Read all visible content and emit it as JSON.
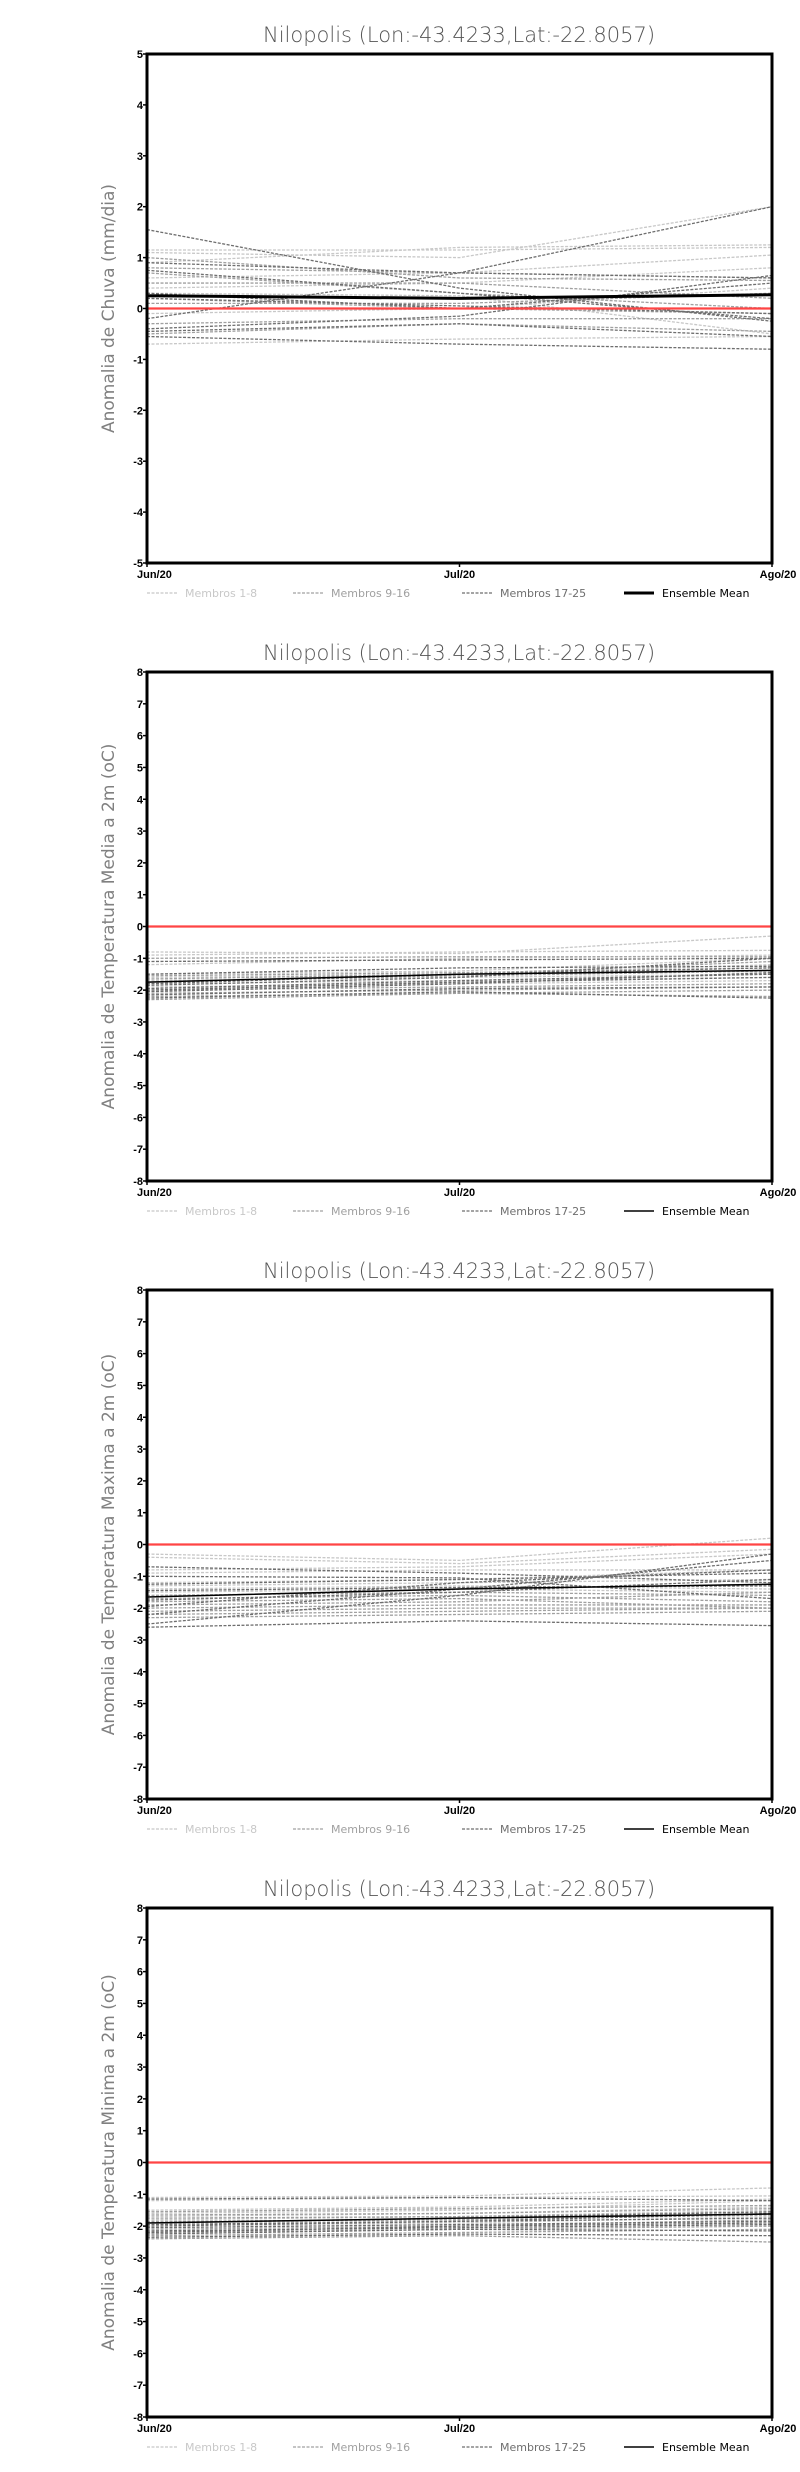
{
  "colors": {
    "zero_line": "#ff4444",
    "members_1_8": "#c8c8c8",
    "members_9_16": "#a0a0a0",
    "members_17_25": "#6e6e6e",
    "mean": "#000000"
  },
  "chart_data": [
    {
      "type": "line",
      "title": "Nilopolis (Lon:-43.4233,Lat:-22.8057)",
      "ylabel": "Anomalia de Chuva (mm/dia)",
      "xlabel": "",
      "categories": [
        "Jun/20",
        "Jul/20",
        "Ago/20"
      ],
      "ylim": [
        -5,
        5
      ],
      "yticks": [
        5,
        4,
        3,
        2,
        1,
        0,
        -1,
        -2,
        -3,
        -4,
        -5
      ],
      "legend": [
        "Membros 1-8",
        "Membros 9-16",
        "Membros 17-25",
        "Ensemble Mean"
      ],
      "legend_position": "bottom",
      "mean_thick": true,
      "members": [
        [
          1.15,
          1.15,
          1.2
        ],
        [
          1.1,
          1.0,
          2.0
        ],
        [
          0.9,
          1.2,
          1.25
        ],
        [
          0.6,
          0.7,
          1.05
        ],
        [
          0.4,
          0.5,
          0.8
        ],
        [
          -0.7,
          -0.6,
          -0.55
        ],
        [
          -0.1,
          0.0,
          0.4
        ],
        [
          0.3,
          0.25,
          -0.5
        ],
        [
          0.8,
          0.7,
          0.6
        ],
        [
          0.5,
          0.5,
          0.2
        ],
        [
          -0.5,
          -0.3,
          -0.45
        ],
        [
          0.2,
          0.0,
          -0.1
        ],
        [
          1.0,
          0.6,
          0.55
        ],
        [
          0.1,
          0.1,
          0.3
        ],
        [
          -0.3,
          -0.2,
          -0.2
        ],
        [
          0.7,
          0.3,
          0.0
        ],
        [
          1.55,
          0.4,
          -0.25
        ],
        [
          -0.2,
          0.7,
          2.0
        ],
        [
          0.9,
          0.7,
          0.6
        ],
        [
          -0.45,
          -0.3,
          -0.55
        ],
        [
          -0.55,
          -0.7,
          -0.8
        ],
        [
          0.3,
          0.0,
          0.5
        ],
        [
          0.75,
          0.3,
          -0.2
        ],
        [
          -0.4,
          -0.15,
          0.65
        ],
        [
          0.2,
          0.05,
          -0.1
        ]
      ],
      "mean": [
        0.25,
        0.2,
        0.27
      ]
    },
    {
      "type": "line",
      "title": "Nilopolis (Lon:-43.4233,Lat:-22.8057)",
      "ylabel": "Anomalia de Temperatura Media a 2m (oC)",
      "xlabel": "",
      "categories": [
        "Jun/20",
        "Jul/20",
        "Ago/20"
      ],
      "ylim": [
        -8,
        8
      ],
      "yticks": [
        8,
        7,
        6,
        5,
        4,
        3,
        2,
        1,
        0,
        -1,
        -2,
        -3,
        -4,
        -5,
        -6,
        -7,
        -8
      ],
      "legend": [
        "Membros 1-8",
        "Membros 9-16",
        "Membros 17-25",
        "Ensemble Mean"
      ],
      "legend_position": "bottom",
      "mean_thick": false,
      "members": [
        [
          -0.8,
          -0.85,
          -0.3
        ],
        [
          -0.9,
          -0.8,
          -0.75
        ],
        [
          -1.2,
          -1.0,
          -0.9
        ],
        [
          -1.5,
          -1.4,
          -1.0
        ],
        [
          -1.6,
          -1.5,
          -1.2
        ],
        [
          -1.7,
          -1.6,
          -1.5
        ],
        [
          -1.8,
          -1.7,
          -1.6
        ],
        [
          -1.9,
          -1.8,
          -1.7
        ],
        [
          -2.0,
          -1.9,
          -1.8
        ],
        [
          -2.1,
          -2.0,
          -1.9
        ],
        [
          -2.2,
          -2.1,
          -2.2
        ],
        [
          -2.3,
          -2.1,
          -2.0
        ],
        [
          -1.0,
          -0.95,
          -0.95
        ],
        [
          -1.55,
          -1.45,
          -1.3
        ],
        [
          -1.65,
          -1.5,
          -1.1
        ],
        [
          -1.75,
          -1.55,
          -1.4
        ],
        [
          -1.85,
          -1.6,
          -1.0
        ],
        [
          -1.95,
          -1.7,
          -1.5
        ],
        [
          -2.05,
          -1.8,
          -1.45
        ],
        [
          -2.15,
          -1.95,
          -1.9
        ],
        [
          -2.25,
          -2.05,
          -2.25
        ],
        [
          -1.1,
          -1.05,
          -1.0
        ],
        [
          -1.5,
          -1.3,
          -1.25
        ],
        [
          -2.0,
          -1.75,
          -1.6
        ],
        [
          -1.8,
          -1.5,
          -1.3
        ]
      ],
      "mean": [
        -1.75,
        -1.5,
        -1.38
      ]
    },
    {
      "type": "line",
      "title": "Nilopolis (Lon:-43.4233,Lat:-22.8057)",
      "ylabel": "Anomalia de Temperatura Maxima a 2m (oC)",
      "xlabel": "",
      "categories": [
        "Jun/20",
        "Jul/20",
        "Ago/20"
      ],
      "ylim": [
        -8,
        8
      ],
      "yticks": [
        8,
        7,
        6,
        5,
        4,
        3,
        2,
        1,
        0,
        -1,
        -2,
        -3,
        -4,
        -5,
        -6,
        -7,
        -8
      ],
      "legend": [
        "Membros 1-8",
        "Membros 9-16",
        "Membros 17-25",
        "Ensemble Mean"
      ],
      "legend_position": "bottom",
      "mean_thick": false,
      "members": [
        [
          -0.3,
          -0.5,
          0.2
        ],
        [
          -0.4,
          -0.6,
          -0.15
        ],
        [
          -0.8,
          -0.7,
          -0.3
        ],
        [
          -0.9,
          -0.8,
          -0.8
        ],
        [
          -1.2,
          -1.1,
          -0.8
        ],
        [
          -1.3,
          -1.2,
          -1.1
        ],
        [
          -1.4,
          -1.3,
          -1.4
        ],
        [
          -1.5,
          -1.4,
          -1.5
        ],
        [
          -1.6,
          -1.5,
          -1.6
        ],
        [
          -1.7,
          -1.6,
          -1.8
        ],
        [
          -1.8,
          -1.7,
          -2.0
        ],
        [
          -1.9,
          -1.8,
          -1.5
        ],
        [
          -2.0,
          -1.9,
          -1.9
        ],
        [
          -2.1,
          -2.0,
          -2.0
        ],
        [
          -2.2,
          -2.1,
          -2.0
        ],
        [
          -2.3,
          -2.2,
          -2.1
        ],
        [
          -2.6,
          -2.4,
          -2.55
        ],
        [
          -2.5,
          -1.6,
          -0.3
        ],
        [
          -2.2,
          -1.4,
          -0.5
        ],
        [
          -1.95,
          -1.2,
          -0.8
        ],
        [
          -1.75,
          -1.5,
          -1.1
        ],
        [
          -1.45,
          -1.35,
          -1.3
        ],
        [
          -1.25,
          -1.1,
          -0.9
        ],
        [
          -1.0,
          -1.05,
          -1.7
        ],
        [
          -0.7,
          -0.9,
          -1.2
        ]
      ],
      "mean": [
        -1.65,
        -1.4,
        -1.25
      ]
    },
    {
      "type": "line",
      "title": "Nilopolis (Lon:-43.4233,Lat:-22.8057)",
      "ylabel": "Anomalia de Temperatura Minima a 2m (oC)",
      "xlabel": "",
      "categories": [
        "Jun/20",
        "Jul/20",
        "Ago/20"
      ],
      "ylim": [
        -8,
        8
      ],
      "yticks": [
        8,
        7,
        6,
        5,
        4,
        3,
        2,
        1,
        0,
        -1,
        -2,
        -3,
        -4,
        -5,
        -6,
        -7,
        -8
      ],
      "legend": [
        "Membros 1-8",
        "Membros 9-16",
        "Membros 17-25",
        "Ensemble Mean"
      ],
      "legend_position": "bottom",
      "mean_thick": false,
      "members": [
        [
          -1.1,
          -1.05,
          -0.8
        ],
        [
          -1.2,
          -1.1,
          -1.05
        ],
        [
          -1.5,
          -1.4,
          -1.15
        ],
        [
          -1.6,
          -1.5,
          -1.2
        ],
        [
          -1.7,
          -1.6,
          -1.4
        ],
        [
          -1.8,
          -1.7,
          -1.5
        ],
        [
          -1.9,
          -1.8,
          -1.6
        ],
        [
          -2.0,
          -1.9,
          -1.7
        ],
        [
          -2.1,
          -2.0,
          -1.8
        ],
        [
          -2.2,
          -2.1,
          -2.0
        ],
        [
          -2.3,
          -2.2,
          -2.1
        ],
        [
          -2.4,
          -2.3,
          -2.5
        ],
        [
          -1.55,
          -1.45,
          -1.35
        ],
        [
          -1.65,
          -1.6,
          -1.45
        ],
        [
          -1.75,
          -1.7,
          -1.55
        ],
        [
          -1.85,
          -1.8,
          -1.65
        ],
        [
          -1.95,
          -1.85,
          -1.75
        ],
        [
          -2.05,
          -1.95,
          -1.85
        ],
        [
          -2.15,
          -2.05,
          -1.95
        ],
        [
          -2.25,
          -2.1,
          -2.15
        ],
        [
          -2.35,
          -2.25,
          -2.3
        ],
        [
          -1.15,
          -1.1,
          -1.2
        ],
        [
          -2.0,
          -1.85,
          -1.6
        ],
        [
          -2.2,
          -2.0,
          -1.9
        ],
        [
          -1.9,
          -1.75,
          -1.55
        ]
      ],
      "mean": [
        -1.9,
        -1.75,
        -1.62
      ]
    }
  ]
}
